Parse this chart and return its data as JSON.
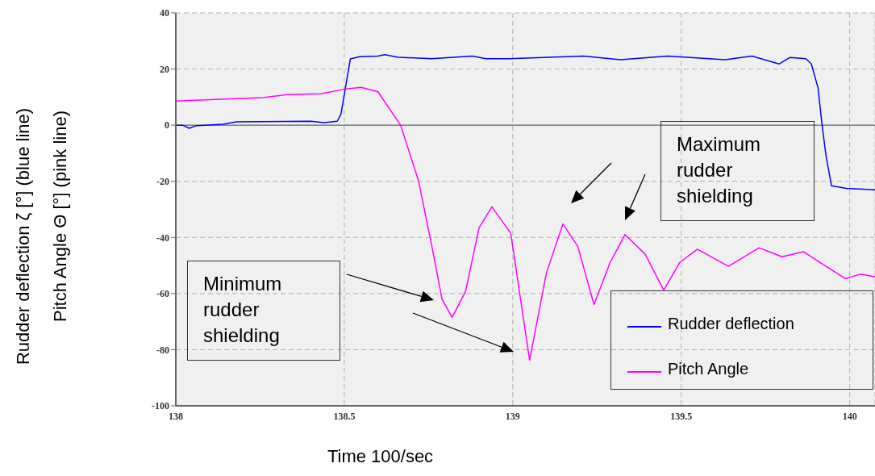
{
  "chart_data": {
    "type": "line",
    "xlabel": "Time 100/sec",
    "ylabel": "Rudder deflection ζ [°] (blue line)\nPitch Angle Θ [°] (pink line)",
    "xlim": [
      138,
      140.075
    ],
    "xticks": [
      138,
      138.5,
      139,
      139.5,
      140
    ],
    "ylim": [
      -100,
      40
    ],
    "yticks": [
      -100,
      -80,
      -60,
      -40,
      -20,
      0,
      20,
      40
    ],
    "grid": true,
    "legend": "bottom right",
    "marker": "none",
    "line_style": "solid",
    "ref_lines": [
      {
        "axis": "y",
        "value": 0,
        "color": "#808080"
      }
    ],
    "annotations": [
      "Minimum rudder shielding",
      "Maximum rudder shielding"
    ],
    "series": [
      {
        "name": "Rudder deflection",
        "color": "#0000ff",
        "x": [
          138,
          138.02,
          138.04,
          138.06,
          138.14,
          138.18,
          138.4,
          138.44,
          138.479,
          138.49,
          138.506,
          138.518,
          138.546,
          138.6,
          138.62,
          138.66,
          138.76,
          138.88,
          138.92,
          138.99,
          139.21,
          139.32,
          139.46,
          139.63,
          139.71,
          139.79,
          139.822,
          139.87,
          139.886,
          139.906,
          139.918,
          139.93,
          139.946,
          139.99,
          140.075
        ],
        "values": [
          0,
          0,
          -1.1,
          -0.2,
          0.3,
          1.2,
          1.4,
          0.9,
          1.4,
          3.9,
          15.2,
          23.6,
          24.4,
          24.6,
          25.1,
          24.2,
          23.7,
          24.6,
          23.7,
          23.7,
          24.6,
          23.3,
          24.6,
          23.3,
          24.6,
          21.8,
          24.1,
          23.7,
          21.8,
          13.3,
          0,
          -11.2,
          -21.6,
          -22.5,
          -23
        ]
      },
      {
        "name": "Pitch Angle",
        "color": "#ff00ff",
        "x": [
          138,
          138.26,
          138.33,
          138.43,
          138.5,
          138.55,
          138.6,
          138.667,
          138.72,
          138.76,
          138.79,
          138.82,
          138.86,
          138.9,
          138.938,
          138.994,
          139.05,
          139.1,
          139.149,
          139.193,
          139.241,
          139.289,
          139.333,
          139.393,
          139.448,
          139.496,
          139.548,
          139.64,
          139.731,
          139.799,
          139.863,
          139.911,
          139.987,
          140.031,
          140.075
        ],
        "values": [
          8.6,
          9.8,
          10.9,
          11.2,
          12.8,
          13.5,
          11.9,
          0,
          -19.7,
          -43.2,
          -62,
          -68.5,
          -59.2,
          -36.6,
          -29.1,
          -38.5,
          -83.7,
          -52.6,
          -35.2,
          -43.2,
          -63.9,
          -48.9,
          -39,
          -46,
          -58.8,
          -48.9,
          -44.2,
          -50.3,
          -43.7,
          -46.9,
          -45.1,
          -48.9,
          -54.7,
          -53.1,
          -54
        ]
      }
    ]
  }
}
